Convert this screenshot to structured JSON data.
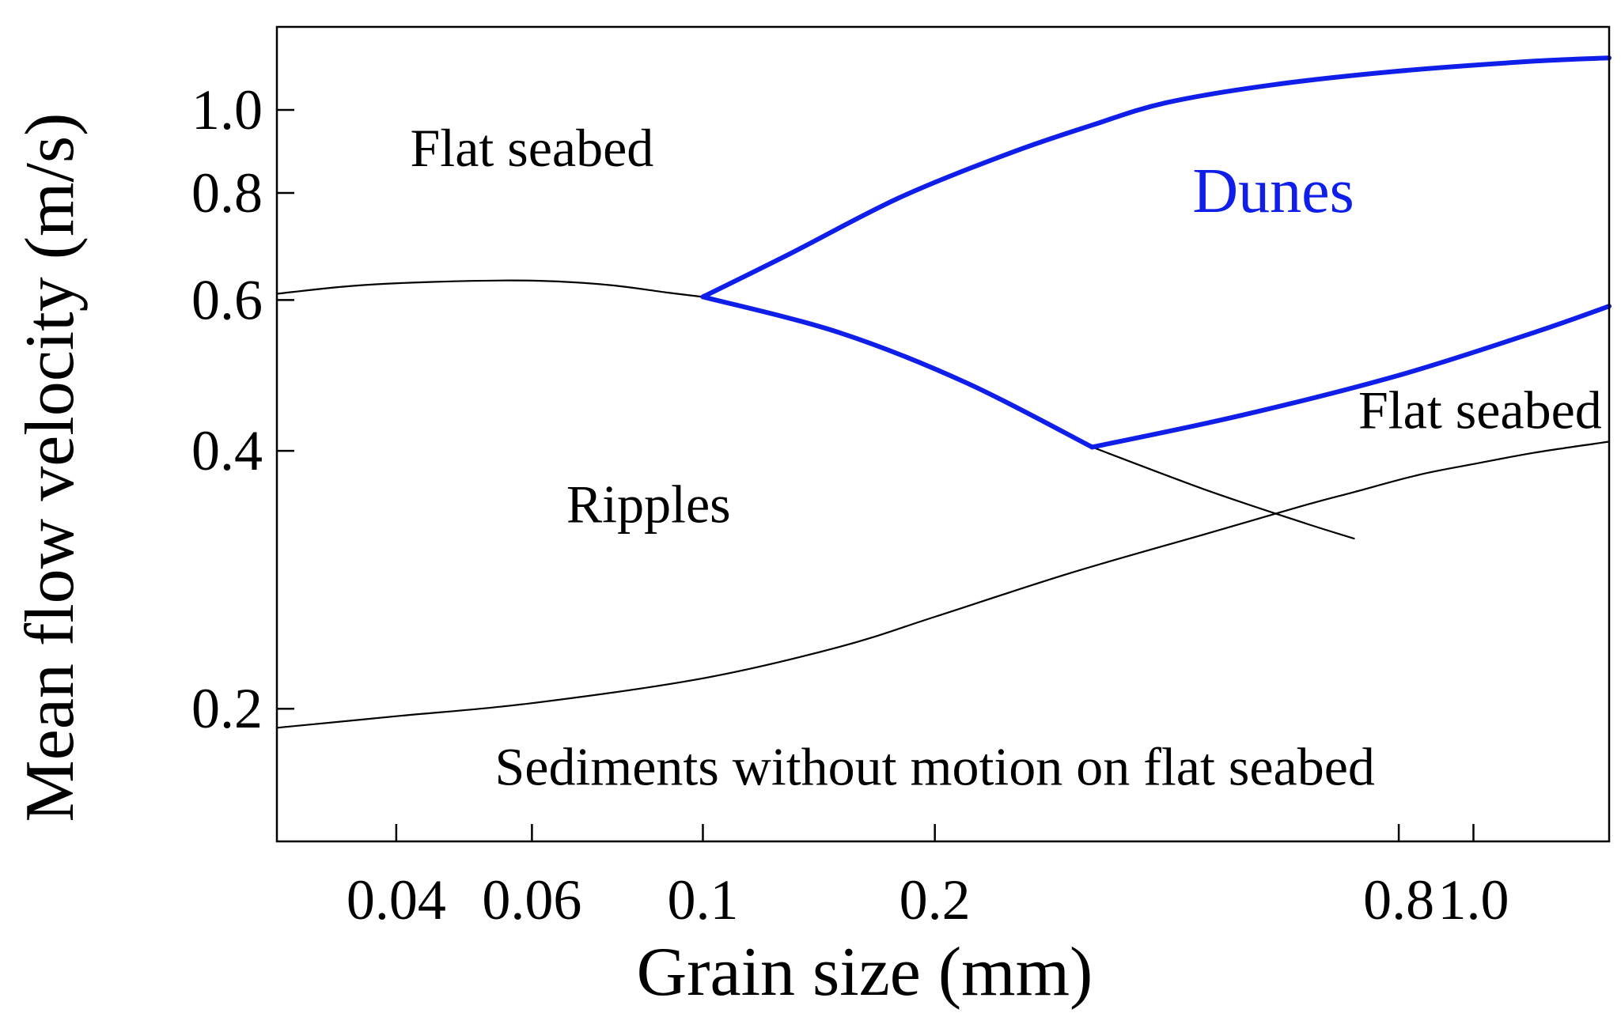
{
  "chart_data": {
    "type": "line",
    "xlabel": "Grain size (mm)",
    "ylabel": "Mean flow velocity (m/s)",
    "x_scale": "log",
    "y_scale": "log",
    "xlim": [
      0.028,
      1.5
    ],
    "ylim": [
      0.14,
      1.25
    ],
    "x_ticks": [
      {
        "value": 0.04,
        "label": "0.04"
      },
      {
        "value": 0.06,
        "label": "0.06"
      },
      {
        "value": 0.1,
        "label": "0.1"
      },
      {
        "value": 0.2,
        "label": "0.2"
      },
      {
        "value": 0.8,
        "label": "0.8"
      },
      {
        "value": 1.0,
        "label": "1.0"
      }
    ],
    "y_ticks": [
      {
        "value": 0.2,
        "label": "0.2"
      },
      {
        "value": 0.4,
        "label": "0.4"
      },
      {
        "value": 0.6,
        "label": "0.6"
      },
      {
        "value": 0.8,
        "label": "0.8"
      },
      {
        "value": 1.0,
        "label": "1.0"
      }
    ],
    "series": [
      {
        "color": "#000000",
        "weight": "thin",
        "points": [
          [
            0.028,
            0.61
          ],
          [
            0.035,
            0.623
          ],
          [
            0.045,
            0.63
          ],
          [
            0.06,
            0.632
          ],
          [
            0.075,
            0.625
          ],
          [
            0.09,
            0.612
          ],
          [
            0.1,
            0.605
          ]
        ]
      },
      {
        "color": "#000000",
        "weight": "thin",
        "points": [
          [
            0.028,
            0.19
          ],
          [
            0.04,
            0.196
          ],
          [
            0.06,
            0.203
          ],
          [
            0.1,
            0.217
          ],
          [
            0.15,
            0.236
          ],
          [
            0.2,
            0.256
          ],
          [
            0.3,
            0.288
          ],
          [
            0.45,
            0.32
          ],
          [
            0.6,
            0.345
          ],
          [
            0.7,
            0.358
          ],
          [
            0.85,
            0.375
          ],
          [
            1.0,
            0.386
          ],
          [
            1.2,
            0.398
          ],
          [
            1.5,
            0.41
          ]
        ]
      },
      {
        "color": "#000000",
        "weight": "thin",
        "points": [
          [
            0.32,
            0.404
          ],
          [
            0.45,
            0.36
          ],
          [
            0.6,
            0.33
          ],
          [
            0.7,
            0.316
          ]
        ]
      },
      {
        "color": "#0f1ee8",
        "weight": "thick",
        "points": [
          [
            0.1,
            0.605
          ],
          [
            0.13,
            0.68
          ],
          [
            0.18,
            0.79
          ],
          [
            0.25,
            0.89
          ],
          [
            0.32,
            0.96
          ],
          [
            0.4,
            1.02
          ],
          [
            0.55,
            1.07
          ],
          [
            0.8,
            1.11
          ],
          [
            1.2,
            1.14
          ],
          [
            1.5,
            1.15
          ]
        ]
      },
      {
        "color": "#0f1ee8",
        "weight": "thick",
        "points": [
          [
            0.1,
            0.605
          ],
          [
            0.15,
            0.55
          ],
          [
            0.22,
            0.48
          ],
          [
            0.32,
            0.404
          ]
        ]
      },
      {
        "color": "#0f1ee8",
        "weight": "thick",
        "points": [
          [
            0.32,
            0.404
          ],
          [
            0.5,
            0.44
          ],
          [
            0.8,
            0.49
          ],
          [
            1.2,
            0.55
          ],
          [
            1.5,
            0.59
          ]
        ]
      }
    ],
    "annotations": [
      {
        "text": "Flat seabed",
        "x": 0.06,
        "y": 0.86,
        "color": "#000000"
      },
      {
        "text": "Dunes",
        "x": 0.55,
        "y": 0.76,
        "color": "#0f1ee8"
      },
      {
        "text": "Flat seabed",
        "x": 1.02,
        "y": 0.425,
        "color": "#000000"
      },
      {
        "text": "Ripples",
        "x": 0.085,
        "y": 0.33,
        "color": "#000000"
      },
      {
        "text": "Sediments without motion on flat seabed",
        "x": 0.2,
        "y": 0.163,
        "color": "#000000"
      }
    ]
  }
}
